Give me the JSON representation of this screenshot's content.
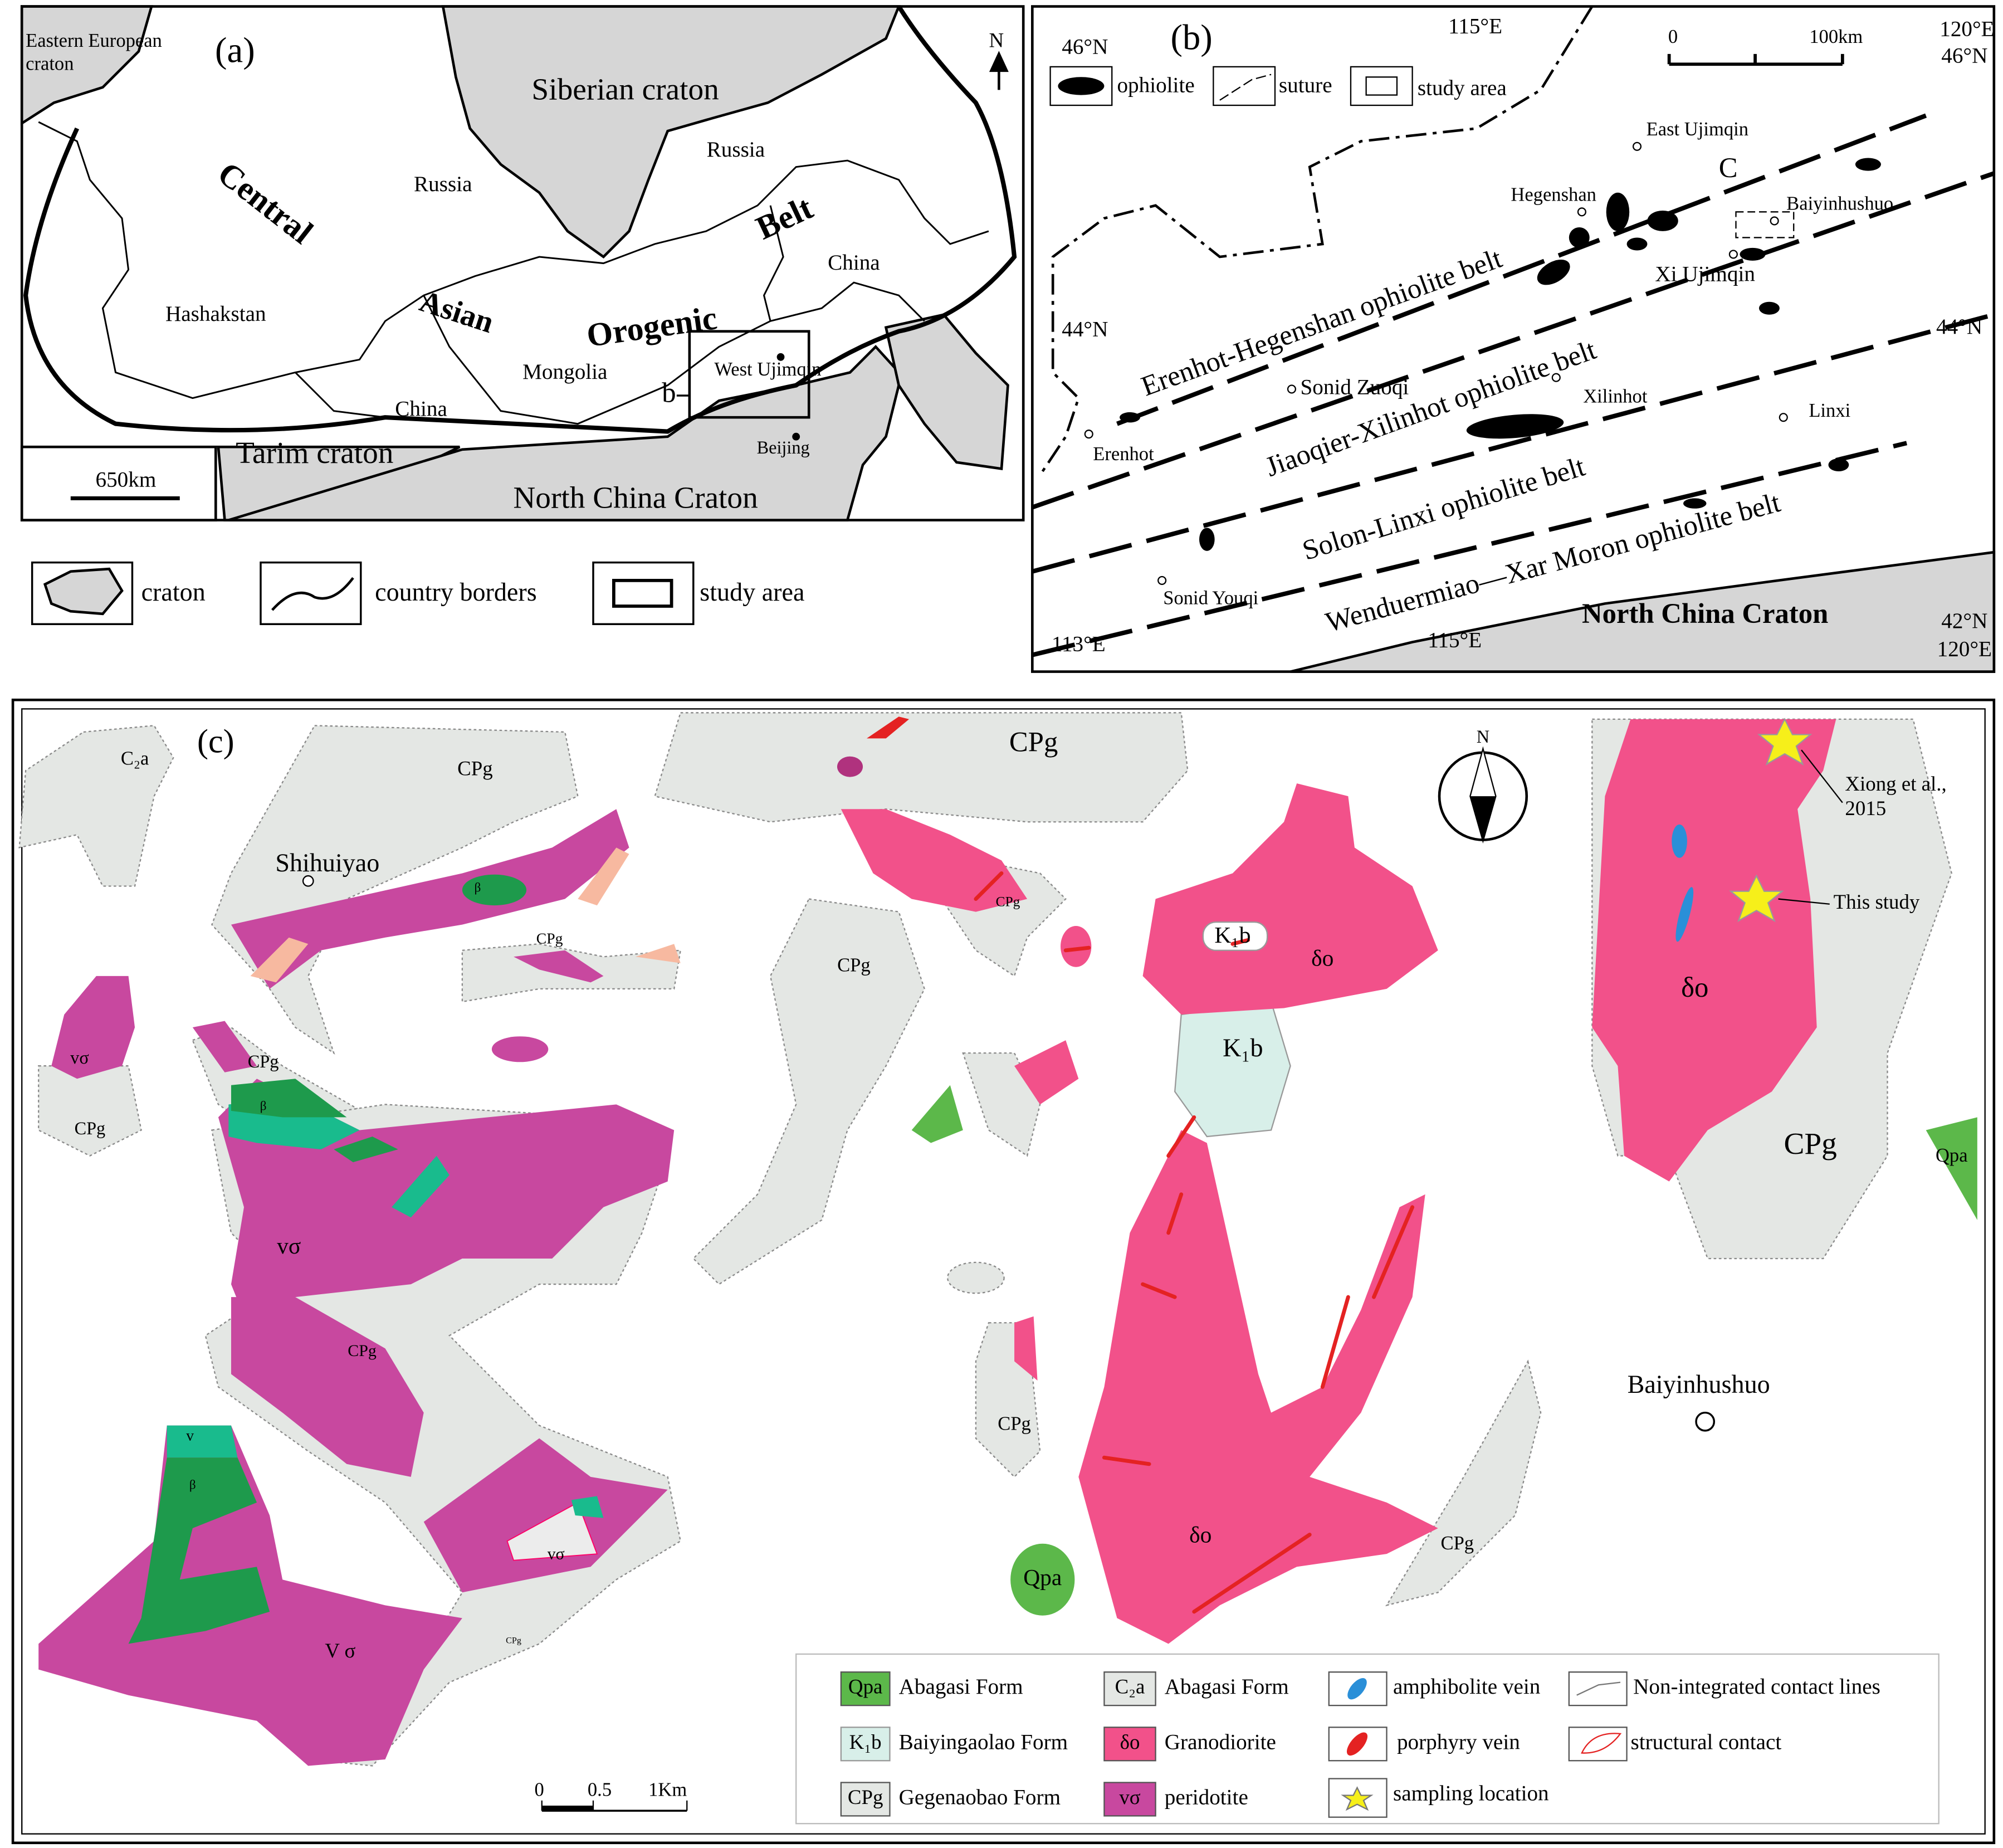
{
  "panel_a": {
    "labels": [
      "(a)",
      "Eastern European",
      "craton",
      "Siberian craton",
      "N",
      "Central",
      "Asian",
      "Orogenic",
      "Belt",
      "Russia",
      "Russia",
      "China",
      "China",
      "Hashakstan",
      "Mongolia",
      "West Ujimqin",
      "b",
      "Beijing",
      "Tarim craton",
      "North China Craton",
      "650km"
    ],
    "legend": [
      "craton",
      "country borders",
      "study area"
    ]
  },
  "panel_b": {
    "labels": [
      "(b)",
      "46°N",
      "115°E",
      "120°E",
      "0",
      "100km",
      "46°N",
      "East Ujimqin",
      "C",
      "Hegenshan",
      "Baiyinhushuo",
      "Xi Ujimqin",
      "Erenhot-Hegenshan ophiolite belt",
      "44°N",
      "44°N",
      "Sonid Zuoqi",
      "Jiaoqier-Xilinhot ophiolite belt",
      "Xilinhot",
      "Linxi",
      "Erenhot",
      "Solon-Linxi ophiolite belt",
      "Wenduermiao—Xar Moron ophiolite belt",
      "Sonid Youqi",
      "North China Craton",
      "42°N",
      "113°E",
      "115°E",
      "120°E"
    ],
    "legend": [
      "ophiolite",
      "suture",
      "study area"
    ]
  },
  "panel_c": {
    "labels": [
      "(c)",
      "C₂a",
      "CPg",
      "CPg",
      "Shihuiyao",
      "β",
      "CPg",
      "CPg",
      "CPg",
      "K₁b",
      "δο",
      "K₁b",
      "vσ",
      "CPg",
      "CPg",
      "β",
      "vσ",
      "CPg",
      "CPg",
      "v",
      "β",
      "vσ",
      "V σ",
      "CPg",
      "Qpa",
      "δο",
      "CPg",
      "δο",
      "CPg",
      "Qpa",
      "Baiyinhushuo",
      "Xiong et al.,",
      "2015",
      "This study",
      "N"
    ],
    "legend": [
      {
        "symbol": "Qpa",
        "text": "Abagasi Form"
      },
      {
        "symbol": "C₂a",
        "text": "Abagasi Form"
      },
      {
        "text": "amphibolite vein"
      },
      {
        "text": "Non-integrated contact lines"
      },
      {
        "symbol": "K₁b",
        "text": "Baiyingaolao Form"
      },
      {
        "symbol": "δο",
        "text": "Granodiorite"
      },
      {
        "text": "porphyry vein"
      },
      {
        "text": "structural contact"
      },
      {
        "symbol": "CPg",
        "text": "Gegenaobao Form"
      },
      {
        "symbol": "vσ",
        "text": "peridotite"
      },
      {
        "text": "sampling location"
      }
    ],
    "scale": [
      "0",
      "0.5",
      "1Km"
    ]
  }
}
